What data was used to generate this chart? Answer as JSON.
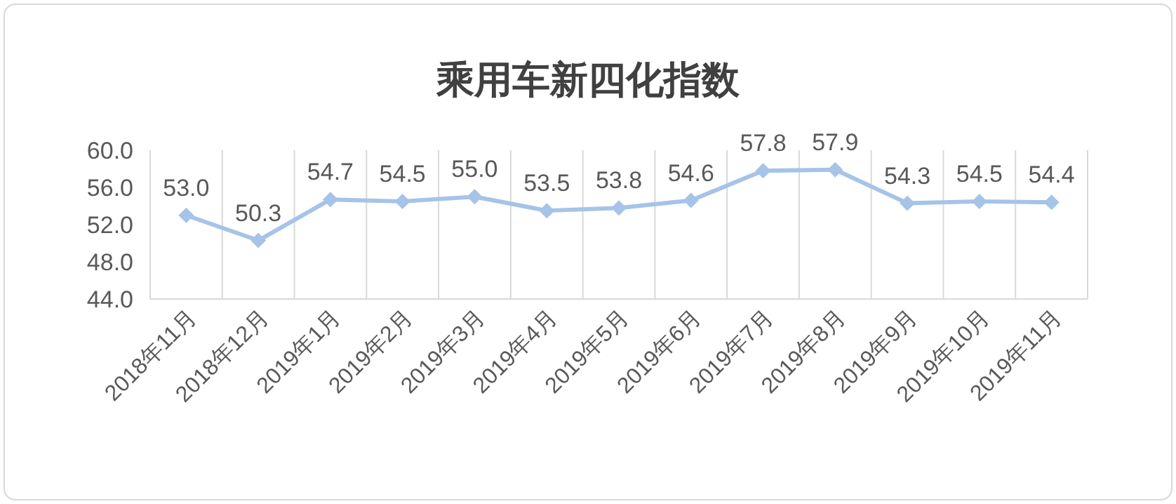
{
  "chart_data": {
    "type": "line",
    "title": "乘用车新四化指数",
    "categories": [
      "2018年11月",
      "2018年12月",
      "2019年1月",
      "2019年2月",
      "2019年3月",
      "2019年4月",
      "2019年5月",
      "2019年6月",
      "2019年7月",
      "2019年8月",
      "2019年9月",
      "2019年10月",
      "2019年11月"
    ],
    "series": [
      {
        "color": "#a6c3e8",
        "values": [
          53.0,
          50.3,
          54.7,
          54.5,
          55.0,
          53.5,
          53.8,
          54.6,
          57.8,
          57.9,
          54.3,
          54.5,
          54.4
        ]
      }
    ],
    "value_labels": [
      "53.0",
      "50.3",
      "54.7",
      "54.5",
      "55.0",
      "53.5",
      "53.8",
      "54.6",
      "57.8",
      "57.9",
      "54.3",
      "54.5",
      "54.4"
    ],
    "ylim": [
      44,
      60
    ],
    "yticks": [
      {
        "value": 44,
        "label": "44.0"
      },
      {
        "value": 48,
        "label": "48.0"
      },
      {
        "value": 52,
        "label": "52.0"
      },
      {
        "value": 56,
        "label": "56.0"
      },
      {
        "value": 60,
        "label": "60.0"
      }
    ],
    "grid": "x",
    "marker": "diamond",
    "line_style": "solid"
  }
}
